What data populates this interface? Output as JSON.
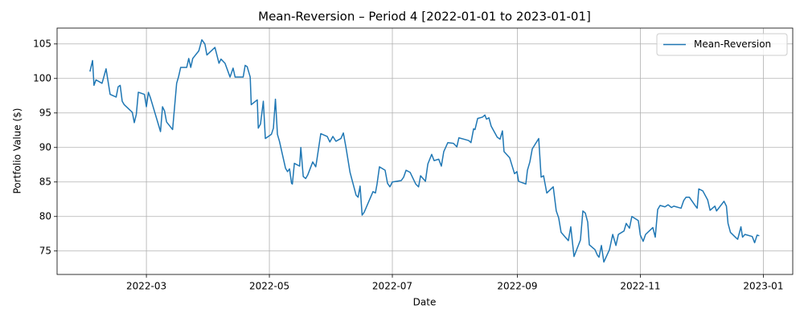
{
  "chart_data": {
    "type": "line",
    "title": "Mean-Reversion – Period 4 [2022-01-01 to 2023-01-01]",
    "xlabel": "Date",
    "ylabel": "Portfolio Value ($)",
    "x": [
      31,
      32.3,
      33,
      34,
      37,
      39,
      41,
      44,
      45,
      46,
      47,
      48,
      52,
      53,
      54,
      55,
      58,
      59,
      60,
      61,
      66,
      67,
      68,
      69,
      72,
      74,
      75,
      76,
      79,
      80,
      81,
      82,
      85,
      86.5,
      88,
      89,
      93,
      95,
      96,
      98,
      100.5,
      102,
      103,
      107,
      108,
      109,
      110.5,
      111,
      114,
      114.5,
      115.6,
      117,
      118,
      121,
      122,
      123,
      124,
      125,
      128,
      129,
      130,
      131,
      131.4,
      132.4,
      135,
      135.6,
      136.8,
      138,
      139,
      141.5,
      143,
      143.5,
      145.5,
      148.7,
      150,
      151.5,
      153,
      155.5,
      156.7,
      158,
      160,
      163,
      164,
      165,
      166,
      167,
      171.4,
      172.6,
      173.4,
      174.6,
      177.4,
      178.6,
      179.8,
      181,
      185.4,
      186.6,
      187.8,
      189.8,
      192.6,
      194,
      195,
      197.4,
      198.6,
      200.5,
      201.7,
      204,
      205.3,
      206.5,
      208.5,
      211.3,
      213,
      214,
      216.5,
      218.9,
      220,
      221.3,
      222,
      223.3,
      225.7,
      226.9,
      227.7,
      228.9,
      230,
      233,
      234.4,
      235.6,
      236.4,
      239.2,
      241.6,
      242.8,
      243.6,
      247.2,
      248,
      249.2,
      250.4,
      253.6,
      254.8,
      256,
      257.6,
      260.8,
      262.3,
      263.5,
      264.7,
      268.3,
      269.5,
      271.1,
      274.3,
      275.5,
      276.7,
      277.9,
      278.7,
      281.5,
      282.7,
      283.5,
      284.7,
      285.9,
      288.7,
      290.3,
      291.9,
      293.1,
      295.9,
      297,
      298.6,
      299.8,
      303,
      304,
      305.4,
      306.6,
      310.2,
      311.4,
      312.6,
      313.8,
      316.2,
      317.8,
      319.4,
      320.6,
      324.2,
      325.5,
      326.7,
      328.3,
      331.4,
      332.2,
      333,
      335,
      337.4,
      338.6,
      339.8,
      341,
      341.8,
      345.5,
      346.7,
      347.5,
      348.7,
      351.5,
      352.3,
      353.9,
      354.7,
      355.9,
      359.5,
      360.7,
      361.9,
      363
    ],
    "series": [
      {
        "name": "Mean-Reversion",
        "color": "#1f77b4",
        "values": [
          101.0,
          102.6,
          99.0,
          99.8,
          99.3,
          101.4,
          97.7,
          97.3,
          98.8,
          99.0,
          96.7,
          96.2,
          95.1,
          93.6,
          94.8,
          98.0,
          97.7,
          95.9,
          98.0,
          97.2,
          92.3,
          95.9,
          95.3,
          93.7,
          92.6,
          99.3,
          100.3,
          101.6,
          101.6,
          102.9,
          101.6,
          102.9,
          104.0,
          105.6,
          105.0,
          103.4,
          104.5,
          102.2,
          102.8,
          102.2,
          100.2,
          101.5,
          100.2,
          100.2,
          101.9,
          101.7,
          100.2,
          96.2,
          96.9,
          92.8,
          93.4,
          96.7,
          91.3,
          91.9,
          92.8,
          97.0,
          91.9,
          90.9,
          87.0,
          86.5,
          86.9,
          84.8,
          84.7,
          87.7,
          87.3,
          90.0,
          85.8,
          85.5,
          86.0,
          87.9,
          87.2,
          88.1,
          92.0,
          91.6,
          90.8,
          91.6,
          90.9,
          91.3,
          92.1,
          90.0,
          86.4,
          83.1,
          82.8,
          84.4,
          80.2,
          80.6,
          83.6,
          83.4,
          84.7,
          87.2,
          86.7,
          84.8,
          84.3,
          85.0,
          85.2,
          85.7,
          86.7,
          86.4,
          84.7,
          84.3,
          85.9,
          85.1,
          87.6,
          89.0,
          88.1,
          88.3,
          87.3,
          89.4,
          90.7,
          90.6,
          90.1,
          91.4,
          91.2,
          91.0,
          90.7,
          92.7,
          92.6,
          94.2,
          94.4,
          94.7,
          94.1,
          94.3,
          93.1,
          91.5,
          91.2,
          92.4,
          89.4,
          88.5,
          86.2,
          86.5,
          85.1,
          84.7,
          86.7,
          87.9,
          89.8,
          91.3,
          85.7,
          85.9,
          83.4,
          84.3,
          80.8,
          79.8,
          77.7,
          76.5,
          78.5,
          74.2,
          76.6,
          80.8,
          80.5,
          79.2,
          75.9,
          75.2,
          74.4,
          74.1,
          75.8,
          73.4,
          75.2,
          77.4,
          75.8,
          77.4,
          77.9,
          79.0,
          78.3,
          80.0,
          79.4,
          77.3,
          76.4,
          77.4,
          78.4,
          77.0,
          81.0,
          81.6,
          81.4,
          81.7,
          81.3,
          81.5,
          81.2,
          82.3,
          82.8,
          82.8,
          81.5,
          81.2,
          84.0,
          83.7,
          82.4,
          80.9,
          81.2,
          81.5,
          80.8,
          82.2,
          81.5,
          79.0,
          77.7,
          76.9,
          76.7,
          78.5,
          77.0,
          77.4,
          77.1,
          76.2,
          77.3,
          77.2
        ]
      }
    ],
    "xlim": [
      14.7,
      379.6
    ],
    "ylim": [
      71.6,
      107.3
    ],
    "xticks": [
      {
        "value": 59,
        "label": "2022-03"
      },
      {
        "value": 120,
        "label": "2022-05"
      },
      {
        "value": 181,
        "label": "2022-07"
      },
      {
        "value": 243,
        "label": "2022-09"
      },
      {
        "value": 304,
        "label": "2022-11"
      },
      {
        "value": 365,
        "label": "2023-01"
      }
    ],
    "yticks": [
      75,
      80,
      85,
      90,
      95,
      100,
      105
    ],
    "grid": true,
    "legend": "upper right"
  }
}
